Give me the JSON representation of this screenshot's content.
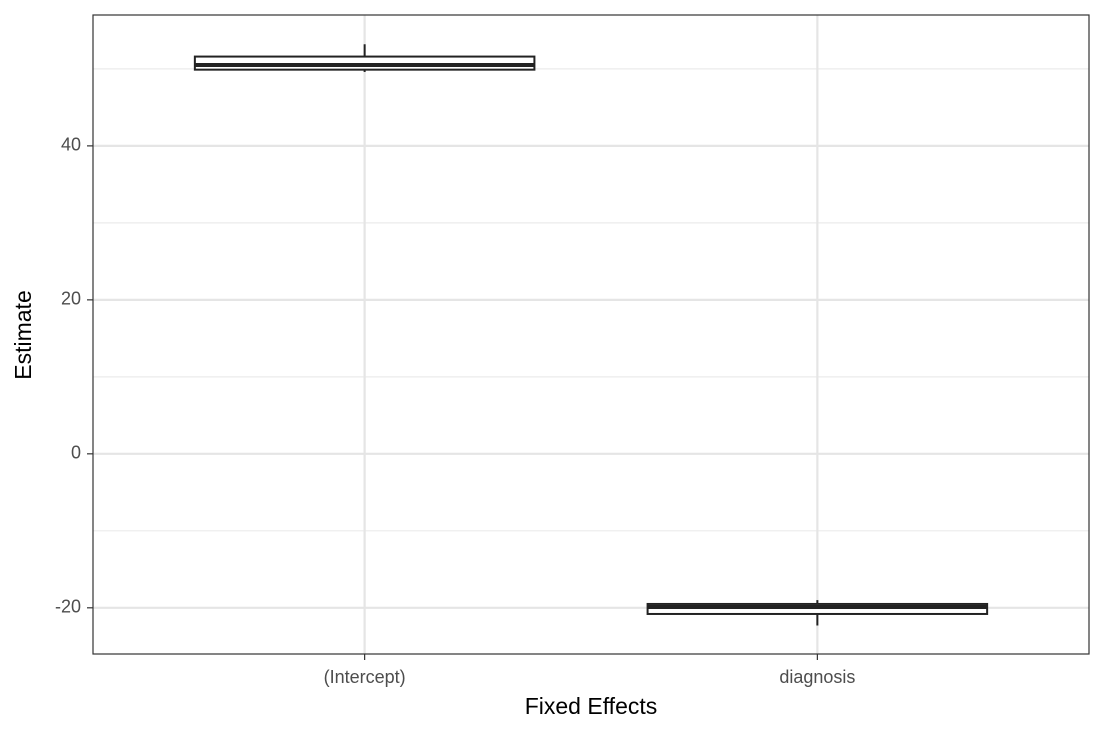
{
  "chart_data": {
    "type": "boxplot",
    "x_label": "Fixed Effects",
    "y_label": "Estimate",
    "categories": [
      "(Intercept)",
      "diagnosis"
    ],
    "boxes": [
      {
        "low": 49.6,
        "q1": 49.9,
        "median": 50.5,
        "q3": 51.6,
        "high": 53.2
      },
      {
        "low": -22.3,
        "q1": -20.8,
        "median": -19.9,
        "q3": -19.5,
        "high": -19.0
      }
    ],
    "color": "#222222",
    "fill": "#ffffff",
    "ylim": [
      -26,
      57
    ],
    "yticks": [
      -20,
      0,
      20,
      40
    ],
    "y_minor_grid": [
      -10,
      10,
      30,
      50
    ],
    "grid": true
  }
}
